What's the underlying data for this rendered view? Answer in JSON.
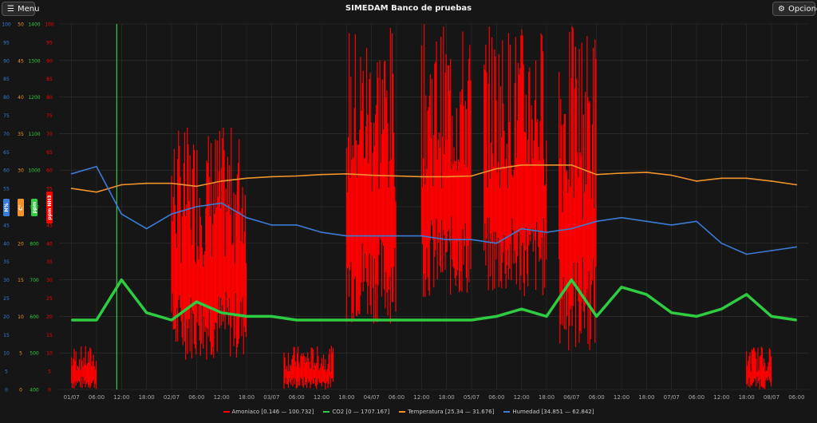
{
  "header": {
    "menu_label": "Menu",
    "title": "SIMEDAM Banco de pruebas",
    "options_label": "Opciones",
    "menu_icon": "hamburger-icon",
    "options_icon": "gear-icon"
  },
  "chart_data": {
    "type": "line",
    "x": [
      "01/07",
      "06:00",
      "12:00",
      "18:00",
      "02/07",
      "06:00",
      "12:00",
      "18:00",
      "03/07",
      "06:00",
      "12:00",
      "18:00",
      "04/07",
      "06:00",
      "12:00",
      "18:00",
      "05/07",
      "06:00",
      "12:00",
      "18:00",
      "06/07",
      "06:00",
      "12:00",
      "18:00",
      "07/07",
      "06:00",
      "12:00",
      "18:00",
      "08/07",
      "06:00"
    ],
    "axes": [
      {
        "id": "hum",
        "label": "H%",
        "color": "#3a7bd5",
        "ylim": [
          0,
          100
        ],
        "ticks": [
          "0",
          "5",
          "10",
          "15",
          "20",
          "25",
          "30",
          "35",
          "40",
          "45",
          "50",
          "55",
          "60",
          "65",
          "70",
          "75",
          "80",
          "85",
          "90",
          "95",
          "100"
        ]
      },
      {
        "id": "temp",
        "label": "C°",
        "color": "#f0932b",
        "ylim": [
          0,
          50
        ],
        "ticks": [
          "0",
          "5",
          "10",
          "15",
          "20",
          "25",
          "30",
          "35",
          "40",
          "45",
          "50"
        ]
      },
      {
        "id": "co2",
        "label": "ppm",
        "color": "#2ecc40",
        "ylim": [
          400,
          1400
        ],
        "ticks": [
          "400",
          "500",
          "600",
          "700",
          "800",
          "900",
          "1000",
          "1100",
          "1200",
          "1300",
          "1400"
        ]
      },
      {
        "id": "nh3",
        "label": "ppm NH3",
        "color": "#ff0000",
        "ylim": [
          0,
          100
        ],
        "ticks": [
          "0",
          "5",
          "10",
          "15",
          "20",
          "25",
          "30",
          "35",
          "40",
          "45",
          "50",
          "55",
          "60",
          "65",
          "70",
          "75",
          "80",
          "85",
          "90",
          "95",
          "100"
        ]
      }
    ],
    "series": [
      {
        "name": "Amoniaco [0.146 — 100.732]",
        "color": "#ff0000",
        "axis": "nh3",
        "bands": [
          [
            0.5,
            1.5,
            0,
            12
          ],
          [
            4.5,
            7.5,
            8,
            72
          ],
          [
            9,
            11,
            0,
            12
          ],
          [
            11.5,
            13.5,
            18,
            100
          ],
          [
            14.5,
            16.5,
            25,
            100
          ],
          [
            17,
            19.5,
            25,
            100
          ],
          [
            20,
            21.5,
            10,
            100
          ],
          [
            27.5,
            28.5,
            0,
            12
          ]
        ]
      },
      {
        "name": "CO2 [0 — 1707.167]",
        "color": "#2ecc40",
        "axis": "co2",
        "values": [
          590,
          590,
          700,
          610,
          590,
          640,
          610,
          600,
          600,
          590,
          590,
          590,
          590,
          590,
          590,
          590,
          590,
          600,
          620,
          600,
          700,
          600,
          680,
          660,
          610,
          600,
          620,
          660,
          600,
          590
        ]
      },
      {
        "name": "Temperatura [25.34 — 31.676]",
        "color": "#f0932b",
        "axis": "temp",
        "values": [
          27.5,
          27,
          28,
          28.2,
          28.2,
          27.8,
          28.5,
          28.9,
          29.1,
          29.2,
          29.4,
          29.5,
          29.3,
          29.2,
          29.1,
          29.1,
          29.2,
          30.2,
          30.7,
          30.7,
          30.7,
          29.4,
          29.6,
          29.7,
          29.3,
          28.5,
          28.9,
          28.9,
          28.5,
          28
        ],
        "min": 25.34,
        "max": 31.676
      },
      {
        "name": "Humedad [34.851 — 62.842]",
        "color": "#3a7bd5",
        "axis": "hum",
        "values": [
          59,
          61,
          48,
          44,
          48,
          50,
          51,
          47,
          45,
          45,
          43,
          42,
          42,
          42,
          42,
          41,
          41,
          40,
          44,
          43,
          44,
          46,
          47,
          46,
          45,
          46,
          40,
          37,
          38,
          39
        ],
        "min": 34.851,
        "max": 62.842
      }
    ],
    "grid": true,
    "legend": "bottom"
  }
}
